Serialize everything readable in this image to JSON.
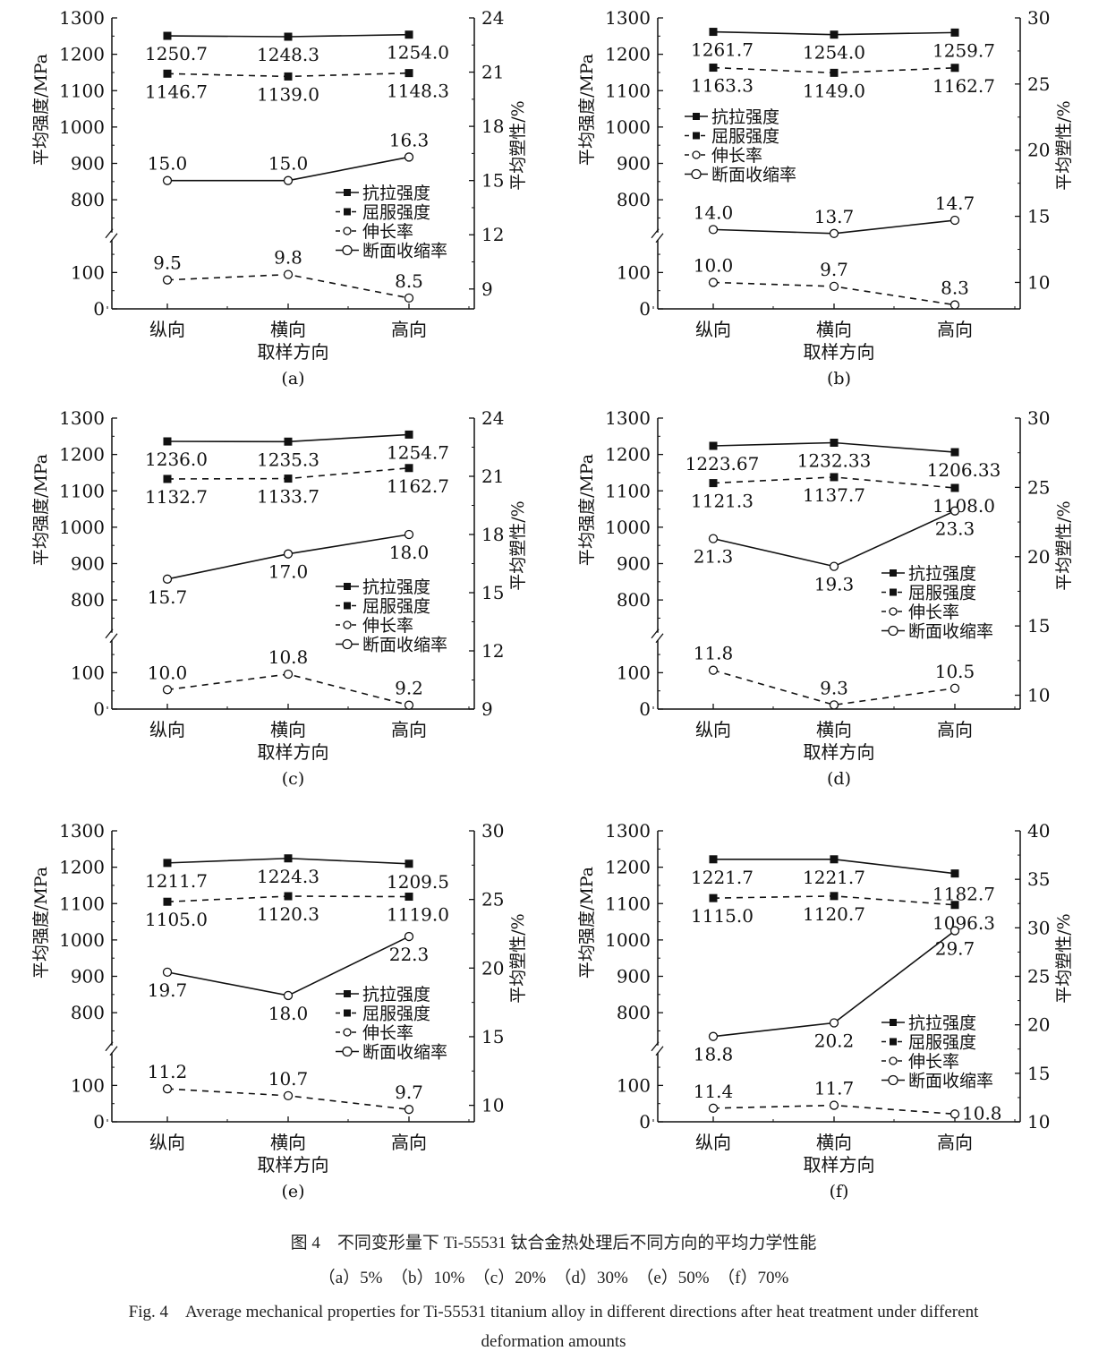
{
  "common": {
    "categories": [
      "纵向",
      "横向",
      "高向"
    ],
    "xlabel": "取样方向",
    "ylabel_left": "平均强度/MPa",
    "ylabel_right": "平均塑性/%",
    "left_ticks": [
      0,
      100,
      800,
      900,
      1000,
      1100,
      1200,
      1300
    ],
    "left_axis_break": [
      200,
      700
    ],
    "legend": [
      "抗拉强度",
      "屈服强度",
      "伸长率",
      "断面收缩率"
    ],
    "series_styles": {
      "抗拉强度": {
        "line": "solid",
        "marker": "filled-square",
        "axis": "left"
      },
      "屈服强度": {
        "line": "dashed",
        "marker": "filled-square",
        "axis": "left"
      },
      "伸长率": {
        "line": "dashed",
        "marker": "open-circle",
        "axis": "right"
      },
      "断面收缩率": {
        "line": "solid",
        "marker": "open-circle",
        "axis": "right"
      }
    },
    "color": "#111111"
  },
  "chart_data": [
    {
      "type": "line",
      "panel": "(a)",
      "ylim_left": [
        0,
        1300
      ],
      "ylim_right": [
        7.9,
        24
      ],
      "right_ticks": [
        9,
        12,
        15,
        18,
        21,
        24
      ],
      "legend_position": "lower-right",
      "series": [
        {
          "name": "抗拉强度",
          "values": [
            1250.7,
            1248.3,
            1254.0
          ],
          "labels": [
            "1250.7",
            "1248.3",
            "1254.0"
          ]
        },
        {
          "name": "屈服强度",
          "values": [
            1146.7,
            1139.0,
            1148.3
          ],
          "labels": [
            "1146.7",
            "1139.0",
            "1148.3"
          ]
        },
        {
          "name": "伸长率",
          "values": [
            9.5,
            9.8,
            8.5
          ],
          "labels": [
            "9.5",
            "9.8",
            "8.5"
          ]
        },
        {
          "name": "断面收缩率",
          "values": [
            15.0,
            15.0,
            16.3
          ],
          "labels": [
            "15.0",
            "15.0",
            "16.3"
          ]
        }
      ]
    },
    {
      "type": "line",
      "panel": "(b)",
      "ylim_left": [
        0,
        1300
      ],
      "ylim_right": [
        8,
        30
      ],
      "right_ticks": [
        10,
        15,
        20,
        25,
        30
      ],
      "legend_position": "upper-left",
      "series": [
        {
          "name": "抗拉强度",
          "values": [
            1261.7,
            1254.0,
            1259.7
          ],
          "labels": [
            "1261.7",
            "1254.0",
            "1259.7"
          ]
        },
        {
          "name": "屈服强度",
          "values": [
            1163.3,
            1149.0,
            1162.7
          ],
          "labels": [
            "1163.3",
            "1149.0",
            "1162.7"
          ]
        },
        {
          "name": "伸长率",
          "values": [
            10.0,
            9.7,
            8.3
          ],
          "labels": [
            "10.0",
            "9.7",
            "8.3"
          ]
        },
        {
          "name": "断面收缩率",
          "values": [
            14.0,
            13.7,
            14.7
          ],
          "labels": [
            "14.0",
            "13.7",
            "14.7"
          ]
        }
      ]
    },
    {
      "type": "line",
      "panel": "(c)",
      "ylim_left": [
        0,
        1300
      ],
      "ylim_right": [
        9,
        24
      ],
      "right_ticks": [
        9,
        12,
        15,
        18,
        21,
        24
      ],
      "legend_position": "lower-right",
      "series": [
        {
          "name": "抗拉强度",
          "values": [
            1236.0,
            1235.3,
            1254.7
          ],
          "labels": [
            "1236.0",
            "1235.3",
            "1254.7"
          ]
        },
        {
          "name": "屈服强度",
          "values": [
            1132.7,
            1133.7,
            1162.7
          ],
          "labels": [
            "1132.7",
            "1133.7",
            "1162.7"
          ]
        },
        {
          "name": "伸长率",
          "values": [
            10.0,
            10.8,
            9.2
          ],
          "labels": [
            "10.0",
            "10.8",
            "9.2"
          ]
        },
        {
          "name": "断面收缩率",
          "values": [
            15.7,
            17.0,
            18.0
          ],
          "labels": [
            "15.7",
            "17.0",
            "18.0"
          ]
        }
      ]
    },
    {
      "type": "line",
      "panel": "(d)",
      "ylim_left": [
        0,
        1300
      ],
      "ylim_right": [
        9,
        30
      ],
      "right_ticks": [
        10,
        15,
        20,
        25,
        30
      ],
      "legend_position": "lower-right",
      "series": [
        {
          "name": "抗拉强度",
          "values": [
            1223.67,
            1232.33,
            1206.33
          ],
          "labels": [
            "1223.67",
            "1232.33",
            "1206.33"
          ]
        },
        {
          "name": "屈服强度",
          "values": [
            1121.3,
            1137.7,
            1108.0
          ],
          "labels": [
            "1121.3",
            "1137.7",
            "1108.0"
          ]
        },
        {
          "name": "伸长率",
          "values": [
            11.8,
            9.3,
            10.5
          ],
          "labels": [
            "11.8",
            "9.3",
            "10.5"
          ]
        },
        {
          "name": "断面收缩率",
          "values": [
            21.3,
            19.3,
            23.3
          ],
          "labels": [
            "21.3",
            "19.3",
            "23.3"
          ]
        }
      ]
    },
    {
      "type": "line",
      "panel": "(e)",
      "ylim_left": [
        0,
        1300
      ],
      "ylim_right": [
        8.8,
        30
      ],
      "right_ticks": [
        10,
        15,
        20,
        25,
        30
      ],
      "legend_position": "lower-right",
      "series": [
        {
          "name": "抗拉强度",
          "values": [
            1211.7,
            1224.3,
            1209.5
          ],
          "labels": [
            "1211.7",
            "1224.3",
            "1209.5"
          ]
        },
        {
          "name": "屈服强度",
          "values": [
            1105.0,
            1120.3,
            1119.0
          ],
          "labels": [
            "1105.0",
            "1120.3",
            "1119.0"
          ]
        },
        {
          "name": "伸长率",
          "values": [
            11.2,
            10.7,
            9.7
          ],
          "labels": [
            "11.2",
            "10.7",
            "9.7"
          ]
        },
        {
          "name": "断面收缩率",
          "values": [
            19.7,
            18.0,
            22.3
          ],
          "labels": [
            "19.7",
            "18.0",
            "22.3"
          ]
        }
      ]
    },
    {
      "type": "line",
      "panel": "(f)",
      "ylim_left": [
        0,
        1300
      ],
      "ylim_right": [
        10,
        40
      ],
      "right_ticks": [
        10,
        15,
        20,
        25,
        30,
        35,
        40
      ],
      "legend_position": "lower-right",
      "series": [
        {
          "name": "抗拉强度",
          "values": [
            1221.7,
            1221.7,
            1182.7
          ],
          "labels": [
            "1221.7",
            "1221.7",
            "1182.7"
          ]
        },
        {
          "name": "屈服强度",
          "values": [
            1115.0,
            1120.7,
            1096.3
          ],
          "labels": [
            "1115.0",
            "1120.7",
            "1096.3"
          ]
        },
        {
          "name": "伸长率",
          "values": [
            11.4,
            11.7,
            10.8
          ],
          "labels": [
            "11.4",
            "11.7",
            "10.8"
          ]
        },
        {
          "name": "断面收缩率",
          "values": [
            18.8,
            20.2,
            29.7
          ],
          "labels": [
            "18.8",
            "20.2",
            "29.7"
          ]
        }
      ]
    }
  ],
  "caption": {
    "cn_title": "图 4　不同变形量下 Ti-55531 钛合金热处理后不同方向的平均力学性能",
    "cn_sub": "（a）5%　（b）10%　（c）20%　（d）30%　（e）50%　（f）70%",
    "en_line1": "Fig. 4　Average mechanical properties for Ti-55531 titanium alloy in different directions after heat treatment under different",
    "en_line2": "deformation amounts"
  }
}
